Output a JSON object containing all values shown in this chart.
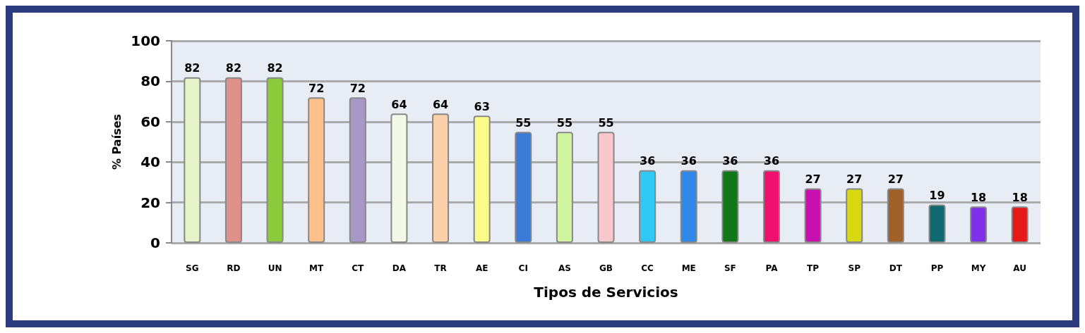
{
  "chart_data": {
    "type": "bar",
    "xlabel": "Tipos de Servicios",
    "ylabel": "% Países",
    "categories": [
      "SG",
      "RD",
      "UN",
      "MT",
      "CT",
      "DA",
      "TR",
      "AE",
      "CI",
      "AS",
      "GB",
      "CC",
      "ME",
      "SF",
      "PA",
      "TP",
      "SP",
      "DT",
      "PP",
      "MY",
      "AU"
    ],
    "values": [
      82,
      82,
      82,
      72,
      72,
      64,
      64,
      63,
      55,
      55,
      55,
      36,
      36,
      36,
      36,
      27,
      27,
      27,
      19,
      18,
      18
    ],
    "colors": [
      "#e6f2c8",
      "#e0908a",
      "#8ccc3c",
      "#ffc08a",
      "#a898c8",
      "#f4f8e8",
      "#fcd0a8",
      "#fcfc88",
      "#3c7cd8",
      "#d0f4a0",
      "#f8c8cc",
      "#30c8f4",
      "#3088e8",
      "#107818",
      "#f01070",
      "#c810b0",
      "#d8d810",
      "#a06028",
      "#106870",
      "#8030e8",
      "#e81818"
    ],
    "ylim": [
      0,
      100
    ],
    "yticks": [
      0,
      20,
      40,
      60,
      80,
      100
    ],
    "grid": "y",
    "data_labels": true
  }
}
